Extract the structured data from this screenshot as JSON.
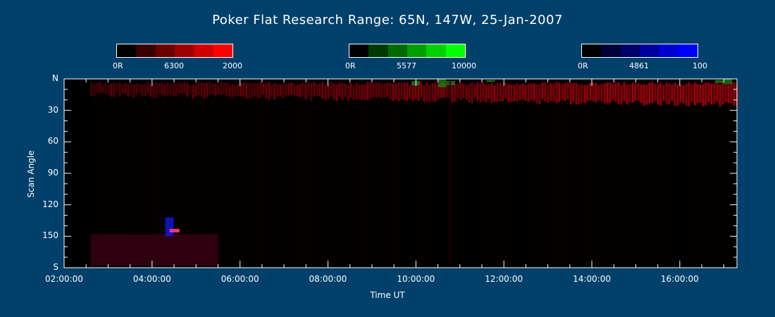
{
  "chart_data": {
    "type": "heatmap",
    "title": "Poker Flat Research Range: 65N, 147W, 25-Jan-2007",
    "xlabel": "Time UT",
    "ylabel": "Scan Angle",
    "x_ticks": [
      "02:00:00",
      "04:00:00",
      "06:00:00",
      "08:00:00",
      "10:00:00",
      "12:00:00",
      "14:00:00",
      "16:00:00"
    ],
    "x_tick_hours": [
      2,
      4,
      6,
      8,
      10,
      12,
      14,
      16
    ],
    "xlim_hours": [
      2.0,
      17.3
    ],
    "y_ticks": [
      "N",
      "30",
      "60",
      "90",
      "120",
      "150",
      "S"
    ],
    "y_tick_values": [
      0,
      30,
      60,
      90,
      120,
      150,
      180
    ],
    "ylim": [
      0,
      180
    ],
    "colorbars": [
      {
        "name": "6300",
        "min_label": "0R",
        "max_label": "2000",
        "color": "#ff0000",
        "segments": [
          "#000000",
          "#3a0000",
          "#6a0000",
          "#9e0000",
          "#cf0000",
          "#ff0000"
        ]
      },
      {
        "name": "5577",
        "min_label": "0R",
        "max_label": "10000",
        "color": "#00ff00",
        "segments": [
          "#000000",
          "#003a00",
          "#006a00",
          "#009e00",
          "#00cf00",
          "#00ff00"
        ]
      },
      {
        "name": "4861",
        "min_label": "0R",
        "max_label": "100",
        "color": "#0000ff",
        "segments": [
          "#000000",
          "#00003a",
          "#00006a",
          "#00009e",
          "#0000cf",
          "#0000ff"
        ]
      }
    ]
  }
}
